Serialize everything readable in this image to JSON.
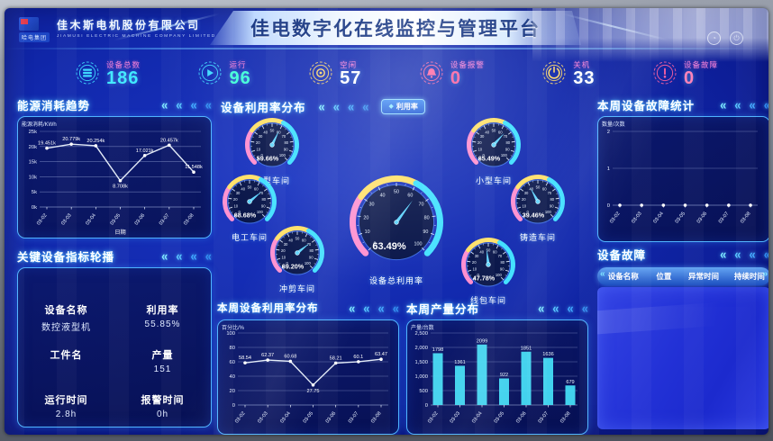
{
  "header": {
    "group_label": "哈电集团",
    "company": "佳木斯电机股份有限公司",
    "company_en": "JIAMUSI ELECTRIC MACHINE COMPANY LIMITED",
    "title": "佳电数字化在线监控与管理平台"
  },
  "header_icons": [
    {
      "name": "clock-icon",
      "glyph": "◔"
    },
    {
      "name": "power-icon",
      "glyph": "⏻"
    }
  ],
  "stats": [
    {
      "label": "设备总数",
      "value": "186",
      "color": "#3fe8ff",
      "icon": "device-total-icon",
      "icon_color": "#3fd9ff"
    },
    {
      "label": "运行",
      "value": "96",
      "color": "#3fffd8",
      "icon": "running-icon",
      "icon_color": "#3fd9ff"
    },
    {
      "label": "空闲",
      "value": "57",
      "color": "#ffffff",
      "icon": "idle-icon",
      "icon_color": "#ffd867"
    },
    {
      "label": "设备报警",
      "value": "0",
      "color": "#ff5fa0",
      "icon": "alarm-bell-icon",
      "icon_color": "#ff5fa0"
    },
    {
      "label": "关机",
      "value": "33",
      "color": "#ffffff",
      "icon": "power-off-icon",
      "icon_color": "#ffd867"
    },
    {
      "label": "设备故障",
      "value": "0",
      "color": "#ff7fb8",
      "icon": "fault-icon",
      "icon_color": "#ff5fa0"
    }
  ],
  "decor": {
    "chevron": "«",
    "ribbon_left": "«",
    "ribbon_right": "»",
    "button_diamond": "◆"
  },
  "sections": {
    "energy": {
      "title": "能源消耗趋势"
    },
    "key_equipment": {
      "title": "关键设备指标轮播",
      "rows": [
        {
          "k": "设备名称",
          "v": "利用率"
        },
        {
          "k": "数控液型机",
          "v": "55.85%"
        },
        {
          "k": "工件名",
          "v": "产量"
        },
        {
          "k": "",
          "v": "151"
        },
        {
          "k": "运行时间",
          "v": "报警时间"
        },
        {
          "k": "2.8h",
          "v": "0h"
        }
      ]
    },
    "gauge_panel": {
      "title": "设备利用率分布",
      "button_label": "利用率"
    },
    "week_util": {
      "title": "本周设备利用率分布"
    },
    "week_output": {
      "title": "本周产量分布"
    },
    "week_fault": {
      "title": "本周设备故障统计"
    },
    "fault_table": {
      "title": "设备故障",
      "headers": [
        "设备名称",
        "位置",
        "异常时间",
        "持续时间"
      ],
      "rows": []
    }
  },
  "chart_data": [
    {
      "name": "energy_trend",
      "type": "line",
      "title": "能源消耗趋势",
      "ylabel": "能源消耗/KWh",
      "xlabel": "日期",
      "x": [
        "03-02",
        "03-03",
        "03-04",
        "03-05",
        "03-06",
        "03-07",
        "03-08"
      ],
      "values": [
        19.451,
        20.779,
        20.254,
        8.708,
        17.021,
        20.457,
        11.548
      ],
      "point_labels": [
        "19.451k",
        "20.779k",
        "20.254k",
        "8.708k",
        "17.021k",
        "20.457k",
        "11.548k"
      ],
      "ylim": [
        0,
        25
      ],
      "yticks": [
        0,
        5,
        10,
        15,
        20,
        25
      ],
      "ytick_labels": [
        "0k",
        "5k",
        "10k",
        "15k",
        "20k",
        "25k"
      ],
      "grid": true,
      "legend": "none"
    },
    {
      "name": "utilization_gauges",
      "type": "gauge",
      "title": "设备利用率分布",
      "min": 0,
      "max": 100,
      "items": [
        {
          "label": "大型车间",
          "value": 59.66,
          "display": "59.66%"
        },
        {
          "label": "小型车间",
          "value": 65.49,
          "display": "65.49%"
        },
        {
          "label": "电工车间",
          "value": 68.68,
          "display": "68.68%"
        },
        {
          "label": "铸造车间",
          "value": 39.46,
          "display": "39.46%"
        },
        {
          "label": "冲剪车间",
          "value": 69.2,
          "display": "69.20%"
        },
        {
          "label": "线包车间",
          "value": 47.78,
          "display": "47.78%"
        },
        {
          "label": "设备总利用率",
          "value": 63.49,
          "display": "63.49%"
        }
      ],
      "ring_colors": {
        "low": "#ff8fd0",
        "mid": "#ffe067",
        "high": "#3fe0ff"
      }
    },
    {
      "name": "week_utilization",
      "type": "line",
      "title": "本周设备利用率分布",
      "ylabel": "百分比/%",
      "xlabel": "",
      "x": [
        "03-02",
        "03-03",
        "03-04",
        "03-05",
        "03-06",
        "03-07",
        "03-08"
      ],
      "values": [
        58.54,
        62.37,
        60.68,
        27.75,
        58.21,
        60.1,
        63.47
      ],
      "point_labels": [
        "58.54",
        "62.37",
        "60.68",
        "27.75",
        "58.21",
        "60.1",
        "63.47"
      ],
      "ylim": [
        0,
        100
      ],
      "yticks": [
        0,
        20,
        40,
        60,
        80,
        100
      ],
      "ytick_labels": [
        "0",
        "20",
        "40",
        "60",
        "80",
        "100"
      ],
      "grid": true,
      "legend": "none"
    },
    {
      "name": "week_output",
      "type": "bar",
      "title": "本周产量分布",
      "ylabel": "产量/台数",
      "xlabel": "",
      "categories": [
        "03-02",
        "03-03",
        "03-04",
        "03-05",
        "03-06",
        "03-07",
        "03-08"
      ],
      "values": [
        1798,
        1361,
        2099,
        922,
        1851,
        1636,
        679
      ],
      "bar_labels": [
        "1798",
        "1361",
        "2099",
        "922",
        "1851",
        "1636",
        "679"
      ],
      "ylim": [
        0,
        2500
      ],
      "yticks": [
        0,
        500,
        1000,
        1500,
        2000,
        2500
      ],
      "ytick_labels": [
        "0",
        "500",
        "1,000",
        "1,500",
        "2,000",
        "2,500"
      ],
      "bar_color": "#45dcf5",
      "grid": true,
      "legend": "none"
    },
    {
      "name": "week_fault_stats",
      "type": "line",
      "title": "本周设备故障统计",
      "ylabel": "数量/次数",
      "xlabel": "",
      "x": [
        "03-02",
        "03-03",
        "03-04",
        "03-05",
        "03-06",
        "03-07",
        "03-08"
      ],
      "values": [
        0,
        0,
        0,
        0,
        0,
        0,
        0
      ],
      "point_labels": [
        "",
        "",
        "",
        "",
        "",
        "",
        ""
      ],
      "ylim": [
        0,
        2
      ],
      "yticks": [
        0,
        1,
        2
      ],
      "ytick_labels": [
        "0",
        "1",
        "2"
      ],
      "grid": true,
      "legend": "none",
      "dots_only": true
    }
  ]
}
